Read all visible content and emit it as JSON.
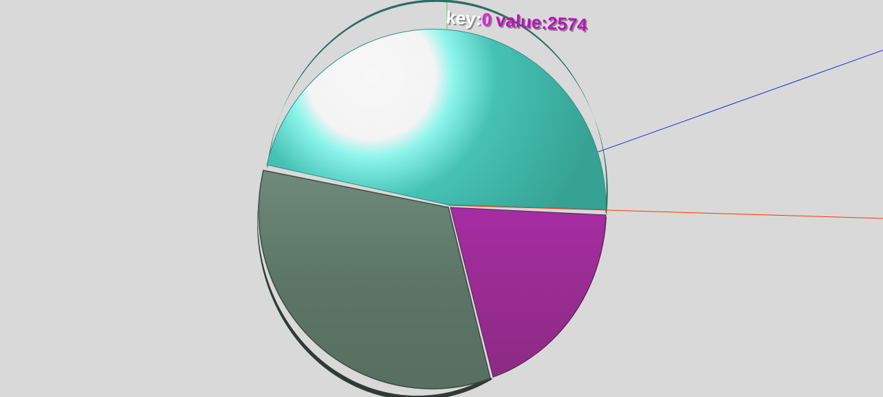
{
  "chart_data": {
    "type": "pie",
    "style": "3d",
    "slices": [
      {
        "key": "0",
        "value": 2574,
        "color": "#3aa89a"
      },
      {
        "key": "1",
        "value": 1620,
        "color": "#9b2c93"
      },
      {
        "key": "2",
        "value": 2500,
        "color": "#5c7566"
      }
    ],
    "tooltip": {
      "key_label": "key:",
      "key_value": "0",
      "value_label": "value:",
      "value_value": "2574",
      "key_label_color": "#ffffff",
      "value_color": "#cc22cc"
    },
    "axes": {
      "x_color": "#ff3300",
      "y_color": "#33dd33",
      "z_color": "#2222dd"
    },
    "background": "#d9d9d9"
  }
}
